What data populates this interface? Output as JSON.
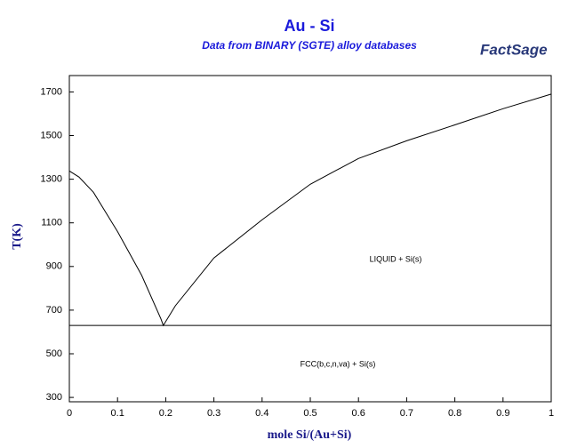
{
  "chart_data": {
    "type": "line",
    "title": "Au - Si",
    "subtitle": "Data from BINARY (SGTE) alloy databases",
    "logo": "FactSage",
    "x_label": "mole Si/(Au+Si)",
    "y_label": "T(K)",
    "xlim": [
      0,
      1
    ],
    "ylim": [
      280,
      1775
    ],
    "xticks": [
      0,
      0.1,
      0.2,
      0.3,
      0.4,
      0.5,
      0.6,
      0.7,
      0.8,
      0.9,
      1
    ],
    "yticks": [
      300,
      500,
      700,
      900,
      1100,
      1300,
      1500,
      1700
    ],
    "annotations": [
      "LIQUID + Si(s)",
      "FCC(b,c,n,va) + Si(s)"
    ],
    "series": [
      {
        "color": "#000000",
        "x": [
          0,
          0.02,
          0.05,
          0.1,
          0.15,
          0.19,
          0.195,
          0.22,
          0.3,
          0.4,
          0.5,
          0.6,
          0.7,
          0.8,
          0.9,
          1
        ],
        "values": [
          1338,
          1310,
          1240,
          1060,
          860,
          660,
          630,
          720,
          939,
          1114,
          1277,
          1395,
          1476,
          1549,
          1623,
          1690
        ]
      },
      {
        "color": "#000000",
        "x": [
          0,
          1
        ],
        "values": [
          630,
          630
        ]
      }
    ]
  }
}
